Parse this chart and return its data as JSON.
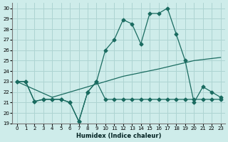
{
  "xlabel": "Humidex (Indice chaleur)",
  "background_color": "#ceecea",
  "grid_color": "#aed4d2",
  "line_color": "#1a6b60",
  "xlim": [
    -0.5,
    23.5
  ],
  "ylim": [
    19,
    30.5
  ],
  "xticks": [
    0,
    1,
    2,
    3,
    4,
    5,
    6,
    7,
    8,
    9,
    10,
    11,
    12,
    13,
    14,
    15,
    16,
    17,
    18,
    19,
    20,
    21,
    22,
    23
  ],
  "yticks": [
    19,
    20,
    21,
    22,
    23,
    24,
    25,
    26,
    27,
    28,
    29,
    30
  ],
  "series_diagonal_x": [
    0,
    4,
    8,
    12,
    16,
    20,
    23
  ],
  "series_diagonal_y": [
    23.0,
    21.5,
    22.5,
    23.5,
    24.2,
    25.0,
    25.3
  ],
  "series_humidex_x": [
    0,
    1,
    2,
    3,
    4,
    5,
    6,
    7,
    8,
    9,
    10,
    11,
    12,
    13,
    14,
    15,
    16,
    17,
    18,
    19,
    20,
    21,
    22,
    23
  ],
  "series_humidex_y": [
    23.0,
    23.0,
    21.1,
    21.3,
    21.3,
    21.3,
    21.0,
    19.2,
    22.0,
    23.0,
    26.0,
    27.0,
    28.9,
    28.5,
    26.6,
    29.5,
    29.5,
    30.0,
    27.5,
    25.0,
    21.0,
    22.5,
    22.0,
    21.5
  ],
  "series_flat_x": [
    0,
    1,
    2,
    3,
    4,
    5,
    6,
    7,
    8,
    9,
    10,
    11,
    12,
    13,
    14,
    15,
    16,
    17,
    18,
    19,
    20,
    21,
    22,
    23
  ],
  "series_flat_y": [
    23.0,
    23.0,
    21.1,
    21.3,
    21.3,
    21.3,
    21.0,
    19.2,
    22.0,
    23.0,
    21.3,
    21.3,
    21.3,
    21.3,
    21.3,
    21.3,
    21.3,
    21.3,
    21.3,
    21.3,
    21.3,
    21.3,
    21.3,
    21.3
  ]
}
